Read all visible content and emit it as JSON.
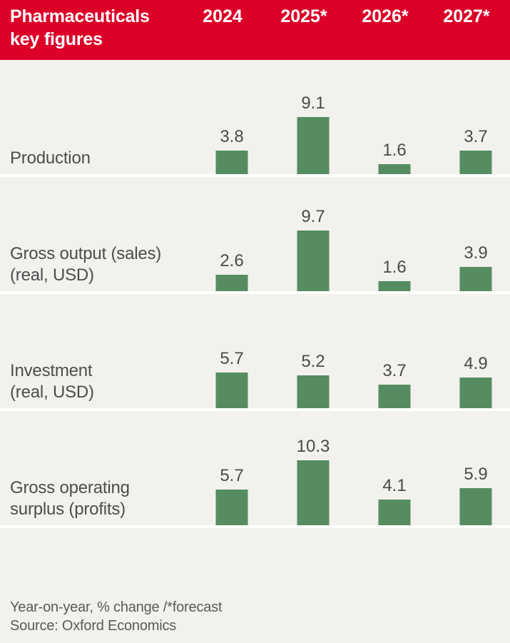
{
  "header": {
    "title": "Pharmaceuticals key figures",
    "columns": [
      "2024",
      "2025*",
      "2026*",
      "2027*"
    ]
  },
  "chart_data": {
    "type": "bar",
    "title": "Pharmaceuticals key figures",
    "categories": [
      "2024",
      "2025*",
      "2026*",
      "2027*"
    ],
    "series": [
      {
        "name": "Production",
        "label_lines": [
          "Production"
        ],
        "values": [
          3.8,
          9.1,
          1.6,
          3.7
        ]
      },
      {
        "name": "Gross output (sales) (real, USD)",
        "label_lines": [
          "Gross output (sales)",
          "(real, USD)"
        ],
        "values": [
          2.6,
          9.7,
          1.6,
          3.9
        ]
      },
      {
        "name": "Investment (real, USD)",
        "label_lines": [
          "Investment",
          "(real, USD)"
        ],
        "values": [
          5.7,
          5.2,
          3.7,
          4.9
        ]
      },
      {
        "name": "Gross operating surplus (profits)",
        "label_lines": [
          "Gross operating",
          "surplus (profits)"
        ],
        "values": [
          5.7,
          10.3,
          4.1,
          5.9
        ]
      }
    ],
    "unit": "Year-on-year, % change",
    "value_labels_shown": true,
    "axes_shown": false,
    "ylim": [
      0,
      11
    ],
    "legend_position": "none"
  },
  "footer": {
    "note": "Year-on-year, % change /*forecast",
    "source": "Source: Oxford Economics"
  },
  "colors": {
    "header_bg": "#dc0028",
    "header_text": "#ffffff",
    "bar": "#568c61",
    "background": "#f2f1ee",
    "separator": "#ffffff",
    "label_text": "#4d4d4d",
    "value_text": "#4a4a4a",
    "footer_text": "#5a5a5a"
  }
}
